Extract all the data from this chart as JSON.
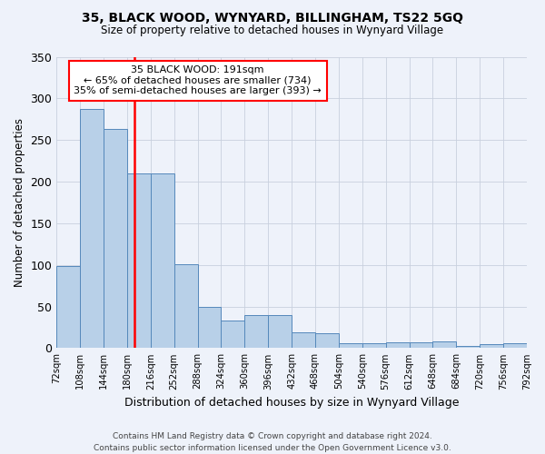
{
  "title1": "35, BLACK WOOD, WYNYARD, BILLINGHAM, TS22 5GQ",
  "title2": "Size of property relative to detached houses in Wynyard Village",
  "xlabel": "Distribution of detached houses by size in Wynyard Village",
  "ylabel": "Number of detached properties",
  "footnote": "Contains HM Land Registry data © Crown copyright and database right 2024.\nContains public sector information licensed under the Open Government Licence v3.0.",
  "bin_labels": [
    "72sqm",
    "108sqm",
    "144sqm",
    "180sqm",
    "216sqm",
    "252sqm",
    "288sqm",
    "324sqm",
    "360sqm",
    "396sqm",
    "432sqm",
    "468sqm",
    "504sqm",
    "540sqm",
    "576sqm",
    "612sqm",
    "648sqm",
    "684sqm",
    "720sqm",
    "756sqm",
    "792sqm"
  ],
  "bar_values": [
    99,
    287,
    263,
    210,
    210,
    101,
    50,
    33,
    40,
    40,
    19,
    18,
    6,
    6,
    7,
    7,
    8,
    3,
    5,
    6
  ],
  "bar_color": "#b8d0e8",
  "bar_edge_color": "#5588bb",
  "vline_color": "red",
  "annotation_text": "35 BLACK WOOD: 191sqm\n← 65% of detached houses are smaller (734)\n35% of semi-detached houses are larger (393) →",
  "annotation_box_color": "white",
  "annotation_box_edge": "red",
  "ylim": [
    0,
    350
  ],
  "yticks": [
    0,
    50,
    100,
    150,
    200,
    250,
    300,
    350
  ],
  "bg_color": "#eef2fa",
  "grid_color": "#c8d0de"
}
